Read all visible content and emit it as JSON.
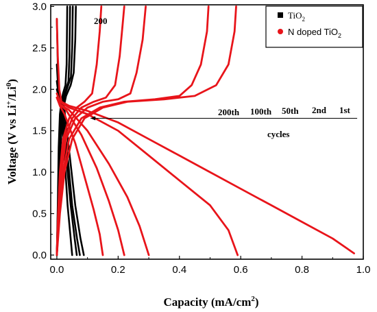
{
  "chart_data": {
    "type": "line",
    "xlabel": "Capacity (mA/cm",
    "xlabel_sup": "2",
    "xlabel_tail": ")",
    "ylabel": "Voltage (V vs Li",
    "ylabel_sup1": "+",
    "ylabel_mid": "/Li",
    "ylabel_sup2": "0",
    "ylabel_tail": ")",
    "xlim": [
      -0.02,
      1.0
    ],
    "ylim": [
      -0.05,
      3.02
    ],
    "xticks": [
      "0.0",
      "0.2",
      "0.4",
      "0.6",
      "0.8",
      "1.0"
    ],
    "xtick_values": [
      0.0,
      0.2,
      0.4,
      0.6,
      0.8,
      1.0
    ],
    "yticks": [
      "0.0",
      "0.5",
      "1.0",
      "1.5",
      "2.0",
      "2.5",
      "3.0"
    ],
    "ytick_values": [
      0.0,
      0.5,
      1.0,
      1.5,
      2.0,
      2.5,
      3.0
    ],
    "legend_position": "top-right",
    "legend": [
      {
        "label": "TiO",
        "sub": "2",
        "marker": "square",
        "color": "#000000"
      },
      {
        "label": "N doped TiO",
        "sub": "2",
        "marker": "circle",
        "color": "#e8141a"
      }
    ],
    "annotations": {
      "top_label": "200",
      "cycle_labels": [
        "200th",
        "100th",
        "50th",
        "2nd",
        "1st"
      ],
      "cycles_word": "cycles"
    },
    "series": [
      {
        "name": "TiO2",
        "color": "#000000",
        "curves": [
          {
            "discharge": [
              [
                0.0,
                2.85
              ],
              [
                0.003,
                2.3
              ],
              [
                0.008,
                1.95
              ],
              [
                0.015,
                1.8
              ],
              [
                0.025,
                1.2
              ],
              [
                0.035,
                0.6
              ],
              [
                0.045,
                0.2
              ],
              [
                0.05,
                0.0
              ]
            ],
            "charge": [
              [
                0.0,
                0.0
              ],
              [
                0.003,
                0.6
              ],
              [
                0.006,
                1.3
              ],
              [
                0.01,
                1.7
              ],
              [
                0.015,
                1.85
              ],
              [
                0.02,
                1.95
              ],
              [
                0.028,
                2.05
              ],
              [
                0.032,
                2.3
              ],
              [
                0.034,
                3.0
              ]
            ]
          },
          {
            "discharge": [
              [
                0.0,
                2.3
              ],
              [
                0.006,
                1.9
              ],
              [
                0.015,
                1.8
              ],
              [
                0.03,
                1.2
              ],
              [
                0.045,
                0.6
              ],
              [
                0.058,
                0.2
              ],
              [
                0.065,
                0.0
              ]
            ],
            "charge": [
              [
                0.0,
                0.0
              ],
              [
                0.004,
                0.6
              ],
              [
                0.008,
                1.3
              ],
              [
                0.013,
                1.75
              ],
              [
                0.02,
                1.9
              ],
              [
                0.03,
                2.0
              ],
              [
                0.038,
                2.1
              ],
              [
                0.041,
                2.4
              ],
              [
                0.043,
                3.0
              ]
            ]
          },
          {
            "discharge": [
              [
                0.0,
                2.1
              ],
              [
                0.008,
                1.85
              ],
              [
                0.02,
                1.75
              ],
              [
                0.035,
                1.2
              ],
              [
                0.05,
                0.6
              ],
              [
                0.066,
                0.2
              ],
              [
                0.075,
                0.0
              ]
            ],
            "charge": [
              [
                0.0,
                0.0
              ],
              [
                0.005,
                0.6
              ],
              [
                0.01,
                1.3
              ],
              [
                0.016,
                1.75
              ],
              [
                0.025,
                1.92
              ],
              [
                0.037,
                2.05
              ],
              [
                0.046,
                2.15
              ],
              [
                0.05,
                2.5
              ],
              [
                0.052,
                3.0
              ]
            ]
          },
          {
            "discharge": [
              [
                0.0,
                2.0
              ],
              [
                0.01,
                1.85
              ],
              [
                0.025,
                1.75
              ],
              [
                0.042,
                1.2
              ],
              [
                0.06,
                0.6
              ],
              [
                0.077,
                0.2
              ],
              [
                0.088,
                0.0
              ]
            ],
            "charge": [
              [
                0.0,
                0.0
              ],
              [
                0.006,
                0.6
              ],
              [
                0.012,
                1.3
              ],
              [
                0.02,
                1.75
              ],
              [
                0.03,
                1.92
              ],
              [
                0.045,
                2.05
              ],
              [
                0.055,
                2.2
              ],
              [
                0.06,
                2.6
              ],
              [
                0.062,
                3.0
              ]
            ]
          }
        ]
      },
      {
        "name": "N doped TiO2",
        "color": "#e8141a",
        "curves": [
          {
            "label": "1st",
            "discharge": [
              [
                0.0,
                2.85
              ],
              [
                0.003,
                2.4
              ],
              [
                0.008,
                2.0
              ],
              [
                0.015,
                1.85
              ],
              [
                0.04,
                1.8
              ],
              [
                0.1,
                1.74
              ],
              [
                0.2,
                1.6
              ],
              [
                0.3,
                1.4
              ],
              [
                0.4,
                1.2
              ],
              [
                0.5,
                1.0
              ],
              [
                0.6,
                0.8
              ],
              [
                0.7,
                0.6
              ],
              [
                0.8,
                0.4
              ],
              [
                0.9,
                0.2
              ],
              [
                0.97,
                0.02
              ]
            ],
            "charge": [
              [
                0.0,
                0.0
              ],
              [
                0.01,
                0.5
              ],
              [
                0.025,
                1.0
              ],
              [
                0.05,
                1.4
              ],
              [
                0.09,
                1.65
              ],
              [
                0.15,
                1.78
              ],
              [
                0.23,
                1.85
              ],
              [
                0.35,
                1.88
              ],
              [
                0.45,
                1.92
              ],
              [
                0.52,
                2.05
              ],
              [
                0.56,
                2.3
              ],
              [
                0.58,
                2.7
              ],
              [
                0.585,
                3.0
              ]
            ]
          },
          {
            "label": "2nd",
            "discharge": [
              [
                0.0,
                1.95
              ],
              [
                0.01,
                1.85
              ],
              [
                0.04,
                1.78
              ],
              [
                0.1,
                1.7
              ],
              [
                0.2,
                1.5
              ],
              [
                0.3,
                1.2
              ],
              [
                0.4,
                0.9
              ],
              [
                0.5,
                0.6
              ],
              [
                0.56,
                0.3
              ],
              [
                0.59,
                0.0
              ]
            ],
            "charge": [
              [
                0.0,
                0.0
              ],
              [
                0.008,
                0.5
              ],
              [
                0.02,
                1.0
              ],
              [
                0.04,
                1.4
              ],
              [
                0.08,
                1.65
              ],
              [
                0.14,
                1.78
              ],
              [
                0.22,
                1.85
              ],
              [
                0.32,
                1.88
              ],
              [
                0.4,
                1.92
              ],
              [
                0.44,
                2.05
              ],
              [
                0.47,
                2.3
              ],
              [
                0.49,
                2.7
              ],
              [
                0.495,
                3.0
              ]
            ]
          },
          {
            "label": "50th",
            "discharge": [
              [
                0.0,
                1.9
              ],
              [
                0.01,
                1.82
              ],
              [
                0.04,
                1.75
              ],
              [
                0.1,
                1.5
              ],
              [
                0.17,
                1.1
              ],
              [
                0.23,
                0.7
              ],
              [
                0.27,
                0.35
              ],
              [
                0.3,
                0.0
              ]
            ],
            "charge": [
              [
                0.0,
                0.0
              ],
              [
                0.006,
                0.5
              ],
              [
                0.015,
                1.0
              ],
              [
                0.03,
                1.4
              ],
              [
                0.06,
                1.65
              ],
              [
                0.1,
                1.78
              ],
              [
                0.15,
                1.85
              ],
              [
                0.2,
                1.88
              ],
              [
                0.24,
                1.95
              ],
              [
                0.26,
                2.2
              ],
              [
                0.28,
                2.6
              ],
              [
                0.29,
                3.0
              ]
            ]
          },
          {
            "label": "100th",
            "discharge": [
              [
                0.0,
                1.9
              ],
              [
                0.01,
                1.82
              ],
              [
                0.03,
                1.75
              ],
              [
                0.08,
                1.45
              ],
              [
                0.13,
                1.05
              ],
              [
                0.17,
                0.65
              ],
              [
                0.2,
                0.3
              ],
              [
                0.22,
                0.0
              ]
            ],
            "charge": [
              [
                0.0,
                0.0
              ],
              [
                0.005,
                0.5
              ],
              [
                0.012,
                1.0
              ],
              [
                0.025,
                1.4
              ],
              [
                0.05,
                1.65
              ],
              [
                0.08,
                1.78
              ],
              [
                0.12,
                1.85
              ],
              [
                0.16,
                1.9
              ],
              [
                0.19,
                2.05
              ],
              [
                0.205,
                2.4
              ],
              [
                0.215,
                2.8
              ],
              [
                0.22,
                3.0
              ]
            ]
          },
          {
            "label": "200th",
            "discharge": [
              [
                0.0,
                1.9
              ],
              [
                0.01,
                1.8
              ],
              [
                0.025,
                1.7
              ],
              [
                0.06,
                1.35
              ],
              [
                0.09,
                0.95
              ],
              [
                0.12,
                0.55
              ],
              [
                0.14,
                0.25
              ],
              [
                0.15,
                0.0
              ]
            ],
            "charge": [
              [
                0.0,
                0.0
              ],
              [
                0.004,
                0.5
              ],
              [
                0.01,
                1.0
              ],
              [
                0.02,
                1.4
              ],
              [
                0.04,
                1.65
              ],
              [
                0.065,
                1.78
              ],
              [
                0.09,
                1.85
              ],
              [
                0.115,
                1.95
              ],
              [
                0.13,
                2.3
              ],
              [
                0.14,
                2.7
              ],
              [
                0.145,
                3.0
              ]
            ]
          }
        ]
      }
    ]
  }
}
